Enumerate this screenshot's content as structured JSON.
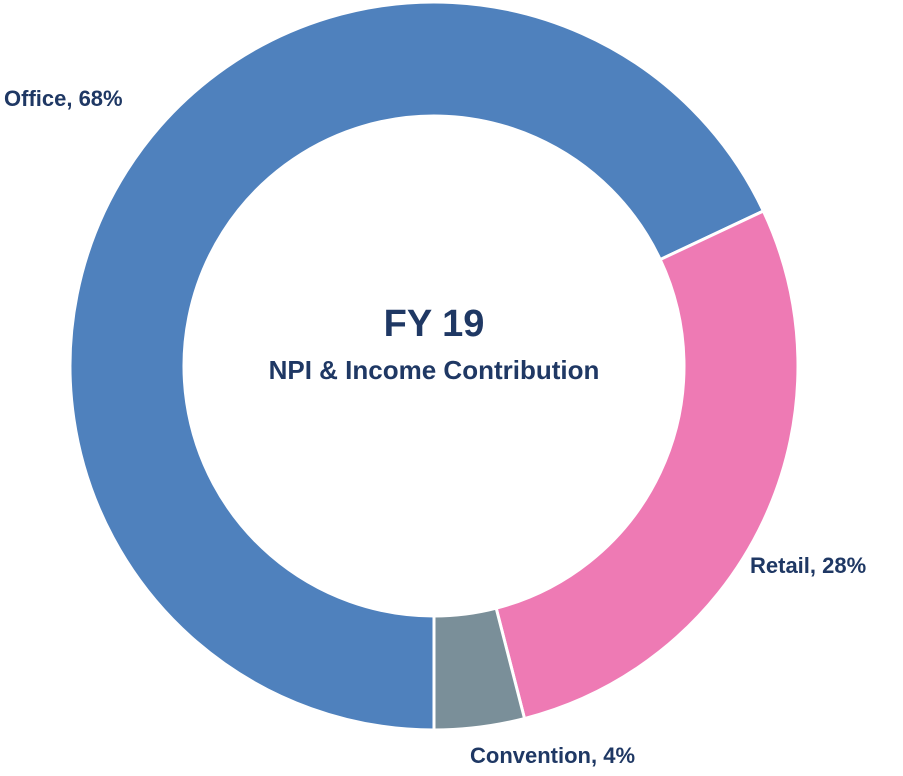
{
  "chart_data": {
    "type": "donut",
    "title": "FY 19",
    "subtitle": "NPI & Income Contribution",
    "values": [
      68,
      28,
      4
    ],
    "value_labels": [
      "Office, 68%",
      "Retail, 28%",
      "Convention, 4%"
    ],
    "colors": [
      "#4f81bd",
      "#ee7ab4",
      "#7a8f99"
    ]
  }
}
